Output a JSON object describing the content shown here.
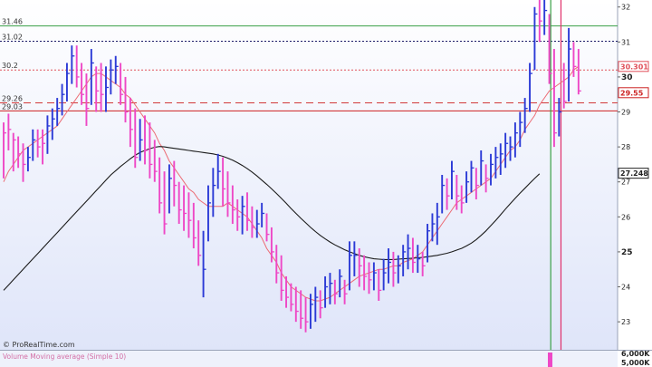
{
  "chart_data": {
    "type": "ohlc",
    "ylim": [
      22.2,
      32.2
    ],
    "y_ticks": [
      23,
      24,
      25,
      26,
      27,
      28,
      29,
      30,
      31,
      32
    ],
    "y_ticks_major": [
      25,
      30
    ],
    "candles": [
      {
        "h": 28.7,
        "l": 27.1,
        "c": 28.4,
        "d": "down"
      },
      {
        "h": 28.95,
        "l": 27.9,
        "c": 28.5,
        "d": "down"
      },
      {
        "h": 28.4,
        "l": 27.3,
        "c": 28.2,
        "d": "down"
      },
      {
        "h": 28.3,
        "l": 27.4,
        "c": 27.8,
        "d": "down"
      },
      {
        "h": 28.1,
        "l": 27.0,
        "c": 27.5,
        "d": "down"
      },
      {
        "h": 28.0,
        "l": 27.3,
        "c": 27.7,
        "d": "up"
      },
      {
        "h": 28.5,
        "l": 27.6,
        "c": 28.2,
        "d": "up"
      },
      {
        "h": 28.5,
        "l": 27.7,
        "c": 28.0,
        "d": "down"
      },
      {
        "h": 28.5,
        "l": 27.5,
        "c": 28.1,
        "d": "down"
      },
      {
        "h": 28.9,
        "l": 27.8,
        "c": 28.6,
        "d": "up"
      },
      {
        "h": 29.1,
        "l": 28.2,
        "c": 28.8,
        "d": "up"
      },
      {
        "h": 29.4,
        "l": 28.6,
        "c": 29.1,
        "d": "up"
      },
      {
        "h": 29.8,
        "l": 28.9,
        "c": 29.5,
        "d": "up"
      },
      {
        "h": 30.4,
        "l": 29.3,
        "c": 30.1,
        "d": "up"
      },
      {
        "h": 30.9,
        "l": 29.8,
        "c": 30.6,
        "d": "up"
      },
      {
        "h": 30.9,
        "l": 29.7,
        "c": 30.0,
        "d": "down"
      },
      {
        "h": 30.4,
        "l": 29.2,
        "c": 29.5,
        "d": "down"
      },
      {
        "h": 30.1,
        "l": 28.6,
        "c": 29.1,
        "d": "down"
      },
      {
        "h": 30.8,
        "l": 29.2,
        "c": 30.4,
        "d": "up"
      },
      {
        "h": 30.3,
        "l": 29.0,
        "c": 29.6,
        "d": "down"
      },
      {
        "h": 30.4,
        "l": 29.0,
        "c": 29.5,
        "d": "down"
      },
      {
        "h": 30.3,
        "l": 29.0,
        "c": 29.7,
        "d": "up"
      },
      {
        "h": 30.5,
        "l": 29.5,
        "c": 30.2,
        "d": "up"
      },
      {
        "h": 30.6,
        "l": 29.8,
        "c": 30.3,
        "d": "up"
      },
      {
        "h": 30.4,
        "l": 29.2,
        "c": 29.5,
        "d": "down"
      },
      {
        "h": 30.0,
        "l": 28.7,
        "c": 29.0,
        "d": "down"
      },
      {
        "h": 29.4,
        "l": 28.0,
        "c": 28.5,
        "d": "down"
      },
      {
        "h": 29.1,
        "l": 27.4,
        "c": 27.7,
        "d": "down"
      },
      {
        "h": 28.8,
        "l": 27.6,
        "c": 28.2,
        "d": "up"
      },
      {
        "h": 28.9,
        "l": 27.5,
        "c": 27.9,
        "d": "down"
      },
      {
        "h": 28.7,
        "l": 27.1,
        "c": 27.5,
        "d": "down"
      },
      {
        "h": 28.2,
        "l": 27.0,
        "c": 27.3,
        "d": "down"
      },
      {
        "h": 27.7,
        "l": 26.1,
        "c": 26.4,
        "d": "down"
      },
      {
        "h": 27.3,
        "l": 25.5,
        "c": 25.8,
        "d": "down"
      },
      {
        "h": 27.5,
        "l": 26.1,
        "c": 27.1,
        "d": "up"
      },
      {
        "h": 27.6,
        "l": 26.3,
        "c": 26.9,
        "d": "down"
      },
      {
        "h": 27.0,
        "l": 25.8,
        "c": 26.2,
        "d": "down"
      },
      {
        "h": 26.9,
        "l": 25.6,
        "c": 26.1,
        "d": "down"
      },
      {
        "h": 26.7,
        "l": 25.4,
        "c": 25.9,
        "d": "down"
      },
      {
        "h": 26.4,
        "l": 25.1,
        "c": 25.4,
        "d": "down"
      },
      {
        "h": 25.9,
        "l": 24.6,
        "c": 24.9,
        "d": "down"
      },
      {
        "h": 25.6,
        "l": 23.7,
        "c": 24.5,
        "d": "up"
      },
      {
        "h": 26.9,
        "l": 25.3,
        "c": 26.4,
        "d": "up"
      },
      {
        "h": 27.4,
        "l": 26.0,
        "c": 26.9,
        "d": "up"
      },
      {
        "h": 27.8,
        "l": 26.8,
        "c": 27.3,
        "d": "up"
      },
      {
        "h": 27.7,
        "l": 26.3,
        "c": 26.8,
        "d": "down"
      },
      {
        "h": 27.3,
        "l": 26.0,
        "c": 26.4,
        "d": "down"
      },
      {
        "h": 26.9,
        "l": 25.8,
        "c": 26.2,
        "d": "down"
      },
      {
        "h": 26.5,
        "l": 25.6,
        "c": 26.0,
        "d": "down"
      },
      {
        "h": 26.6,
        "l": 25.5,
        "c": 26.3,
        "d": "up"
      },
      {
        "h": 26.7,
        "l": 25.6,
        "c": 25.9,
        "d": "down"
      },
      {
        "h": 26.3,
        "l": 25.4,
        "c": 25.7,
        "d": "down"
      },
      {
        "h": 26.2,
        "l": 25.4,
        "c": 25.8,
        "d": "up"
      },
      {
        "h": 26.4,
        "l": 25.7,
        "c": 26.1,
        "d": "up"
      },
      {
        "h": 26.1,
        "l": 25.3,
        "c": 25.5,
        "d": "down"
      },
      {
        "h": 25.7,
        "l": 24.7,
        "c": 25.0,
        "d": "down"
      },
      {
        "h": 25.2,
        "l": 24.1,
        "c": 24.4,
        "d": "down"
      },
      {
        "h": 24.9,
        "l": 23.6,
        "c": 23.9,
        "d": "down"
      },
      {
        "h": 24.3,
        "l": 23.4,
        "c": 23.7,
        "d": "down"
      },
      {
        "h": 24.1,
        "l": 23.3,
        "c": 23.5,
        "d": "down"
      },
      {
        "h": 24.0,
        "l": 23.0,
        "c": 23.3,
        "d": "down"
      },
      {
        "h": 23.9,
        "l": 22.8,
        "c": 23.1,
        "d": "down"
      },
      {
        "h": 23.7,
        "l": 22.7,
        "c": 23.0,
        "d": "down"
      },
      {
        "h": 23.8,
        "l": 22.8,
        "c": 23.5,
        "d": "up"
      },
      {
        "h": 24.0,
        "l": 23.0,
        "c": 23.7,
        "d": "up"
      },
      {
        "h": 23.9,
        "l": 23.1,
        "c": 23.4,
        "d": "down"
      },
      {
        "h": 24.3,
        "l": 23.4,
        "c": 24.0,
        "d": "up"
      },
      {
        "h": 24.4,
        "l": 23.5,
        "c": 24.1,
        "d": "up"
      },
      {
        "h": 24.2,
        "l": 23.5,
        "c": 23.8,
        "d": "down"
      },
      {
        "h": 24.5,
        "l": 23.7,
        "c": 24.3,
        "d": "up"
      },
      {
        "h": 24.2,
        "l": 23.5,
        "c": 23.8,
        "d": "down"
      },
      {
        "h": 25.3,
        "l": 23.9,
        "c": 24.9,
        "d": "up"
      },
      {
        "h": 25.3,
        "l": 24.3,
        "c": 24.9,
        "d": "up"
      },
      {
        "h": 25.1,
        "l": 24.0,
        "c": 24.6,
        "d": "down"
      },
      {
        "h": 24.9,
        "l": 23.9,
        "c": 24.3,
        "d": "down"
      },
      {
        "h": 24.7,
        "l": 23.8,
        "c": 24.2,
        "d": "down"
      },
      {
        "h": 24.7,
        "l": 23.9,
        "c": 24.4,
        "d": "up"
      },
      {
        "h": 24.5,
        "l": 23.6,
        "c": 23.9,
        "d": "down"
      },
      {
        "h": 24.8,
        "l": 23.9,
        "c": 24.4,
        "d": "up"
      },
      {
        "h": 25.1,
        "l": 24.1,
        "c": 24.7,
        "d": "up"
      },
      {
        "h": 25.0,
        "l": 24.0,
        "c": 24.4,
        "d": "down"
      },
      {
        "h": 24.9,
        "l": 24.1,
        "c": 24.6,
        "d": "up"
      },
      {
        "h": 25.2,
        "l": 24.3,
        "c": 25.0,
        "d": "up"
      },
      {
        "h": 25.5,
        "l": 24.5,
        "c": 25.1,
        "d": "up"
      },
      {
        "h": 25.4,
        "l": 24.4,
        "c": 24.7,
        "d": "down"
      },
      {
        "h": 25.2,
        "l": 24.4,
        "c": 24.8,
        "d": "up"
      },
      {
        "h": 25.0,
        "l": 24.3,
        "c": 24.6,
        "d": "down"
      },
      {
        "h": 25.8,
        "l": 24.7,
        "c": 25.6,
        "d": "up"
      },
      {
        "h": 26.1,
        "l": 25.3,
        "c": 25.8,
        "d": "up"
      },
      {
        "h": 26.4,
        "l": 25.2,
        "c": 26.0,
        "d": "up"
      },
      {
        "h": 27.2,
        "l": 26.1,
        "c": 26.9,
        "d": "up"
      },
      {
        "h": 27.1,
        "l": 26.2,
        "c": 26.6,
        "d": "down"
      },
      {
        "h": 27.6,
        "l": 26.5,
        "c": 27.3,
        "d": "up"
      },
      {
        "h": 27.2,
        "l": 26.2,
        "c": 26.6,
        "d": "down"
      },
      {
        "h": 26.9,
        "l": 26.1,
        "c": 26.4,
        "d": "down"
      },
      {
        "h": 27.3,
        "l": 26.4,
        "c": 27.0,
        "d": "up"
      },
      {
        "h": 27.6,
        "l": 26.7,
        "c": 27.4,
        "d": "up"
      },
      {
        "h": 27.4,
        "l": 26.5,
        "c": 26.9,
        "d": "down"
      },
      {
        "h": 27.9,
        "l": 26.9,
        "c": 27.6,
        "d": "up"
      },
      {
        "h": 27.5,
        "l": 26.7,
        "c": 27.1,
        "d": "down"
      },
      {
        "h": 27.8,
        "l": 26.9,
        "c": 27.5,
        "d": "up"
      },
      {
        "h": 28.0,
        "l": 27.1,
        "c": 27.7,
        "d": "up"
      },
      {
        "h": 28.1,
        "l": 27.2,
        "c": 27.8,
        "d": "up"
      },
      {
        "h": 28.4,
        "l": 27.4,
        "c": 28.1,
        "d": "up"
      },
      {
        "h": 28.3,
        "l": 27.6,
        "c": 28.0,
        "d": "up"
      },
      {
        "h": 28.7,
        "l": 27.7,
        "c": 28.4,
        "d": "up"
      },
      {
        "h": 29.0,
        "l": 28.0,
        "c": 28.7,
        "d": "up"
      },
      {
        "h": 29.4,
        "l": 28.4,
        "c": 29.1,
        "d": "up"
      },
      {
        "h": 30.4,
        "l": 29.0,
        "c": 30.1,
        "d": "up"
      },
      {
        "h": 32.0,
        "l": 30.2,
        "c": 31.8,
        "d": "up"
      },
      {
        "h": 32.2,
        "l": 31.0,
        "c": 31.6,
        "d": "down"
      },
      {
        "h": 32.2,
        "l": 31.2,
        "c": 31.9,
        "d": "up"
      },
      {
        "h": 31.8,
        "l": 29.8,
        "c": 30.1,
        "d": "down"
      },
      {
        "h": 30.8,
        "l": 28.0,
        "c": 28.4,
        "d": "down"
      },
      {
        "h": 29.4,
        "l": 28.3,
        "c": 29.0,
        "d": "up"
      },
      {
        "h": 30.4,
        "l": 29.1,
        "c": 29.3,
        "d": "down"
      },
      {
        "h": 31.4,
        "l": 29.3,
        "c": 30.8,
        "d": "up"
      },
      {
        "h": 31.0,
        "l": 30.0,
        "c": 30.3,
        "d": "down"
      },
      {
        "h": 30.8,
        "l": 29.5,
        "c": 29.6,
        "d": "down"
      }
    ],
    "series": [
      {
        "name": "Moving average (Simple 10)",
        "values": [
          27.0,
          27.3,
          27.5,
          27.7,
          27.9,
          28.0,
          28.1,
          28.2,
          28.3,
          28.4,
          28.5,
          28.6,
          28.8,
          29.0,
          29.2,
          29.4,
          29.6,
          29.8,
          30.0,
          30.1,
          30.1,
          30.0,
          29.9,
          29.8,
          29.7,
          29.5,
          29.4,
          29.2,
          29.0,
          28.8,
          28.6,
          28.4,
          28.1,
          27.9,
          27.6,
          27.4,
          27.2,
          27.0,
          26.8,
          26.7,
          26.5,
          26.4,
          26.3,
          26.3,
          26.3,
          26.3,
          26.4,
          26.3,
          26.2,
          26.1,
          26.0,
          25.8,
          25.6,
          25.4,
          25.1,
          24.9,
          24.7,
          24.4,
          24.2,
          24.0,
          23.9,
          23.8,
          23.7,
          23.65,
          23.6,
          23.6,
          23.65,
          23.7,
          23.8,
          23.9,
          24.0,
          24.1,
          24.2,
          24.3,
          24.35,
          24.4,
          24.45,
          24.5,
          24.5,
          24.55,
          24.6,
          24.6,
          24.7,
          24.75,
          24.8,
          24.9,
          25.0,
          25.2,
          25.4,
          25.6,
          25.8,
          26.0,
          26.2,
          26.4,
          26.5,
          26.6,
          26.7,
          26.8,
          26.9,
          27.0,
          27.1,
          27.3,
          27.5,
          27.7,
          27.9,
          28.0,
          28.2,
          28.5,
          28.7,
          28.9,
          29.2,
          29.4,
          29.6,
          29.7,
          29.8,
          29.9,
          30.0,
          30.2,
          30.3
        ]
      },
      {
        "name": "Moving average (Simple 50)",
        "values": [
          23.9,
          24.05,
          24.2,
          24.35,
          24.5,
          24.65,
          24.8,
          24.95,
          25.1,
          25.25,
          25.4,
          25.55,
          25.7,
          25.85,
          26.0,
          26.15,
          26.3,
          26.45,
          26.6,
          26.75,
          26.9,
          27.05,
          27.2,
          27.32,
          27.44,
          27.55,
          27.66,
          27.76,
          27.84,
          27.9,
          27.95,
          27.99,
          28.01,
          28.0,
          27.98,
          27.96,
          27.94,
          27.92,
          27.9,
          27.88,
          27.86,
          27.84,
          27.82,
          27.8,
          27.77,
          27.73,
          27.68,
          27.62,
          27.55,
          27.47,
          27.38,
          27.28,
          27.17,
          27.05,
          26.93,
          26.8,
          26.67,
          26.53,
          26.39,
          26.24,
          26.1,
          25.96,
          25.83,
          25.7,
          25.58,
          25.47,
          25.37,
          25.28,
          25.2,
          25.13,
          25.06,
          25.0,
          24.95,
          24.9,
          24.86,
          24.83,
          24.8,
          24.79,
          24.78,
          24.78,
          24.78,
          24.79,
          24.8,
          24.81,
          24.82,
          24.83,
          24.84,
          24.86,
          24.88,
          24.9,
          24.93,
          24.96,
          25.0,
          25.05,
          25.1,
          25.17,
          25.25,
          25.35,
          25.47,
          25.6,
          25.75,
          25.9,
          26.06,
          26.22,
          26.38,
          26.53,
          26.68,
          26.82,
          26.96,
          27.1,
          27.23
        ]
      }
    ],
    "levels": [
      {
        "value": 31.46,
        "label": "31.46",
        "color": "#3aa047",
        "style": "solid"
      },
      {
        "value": 31.02,
        "label": "31.02",
        "color": "#1a1a66",
        "style": "dotted"
      },
      {
        "value": 30.2,
        "label": "30.2",
        "color": "#e0505a",
        "style": "dotted"
      },
      {
        "value": 29.26,
        "label": "29.26",
        "color": "#d23a3a",
        "style": "dashed"
      },
      {
        "value": 29.03,
        "label": "29.03",
        "color": "#cc2222",
        "style": "solid"
      }
    ],
    "axis_tags": [
      {
        "value": 30.301,
        "label": "30.301",
        "color": "#e0505a"
      },
      {
        "value": 29.55,
        "label": "29.55",
        "color": "#cc2222"
      },
      {
        "value": 27.248,
        "label": "27.248",
        "color": "#222222"
      }
    ],
    "colors": {
      "up": "#2b3ad6",
      "down": "#ee48c6",
      "ma_fast": "#ec6b74",
      "ma_slow": "#1b1b1b",
      "green_line": "#3aa047",
      "red_vline": "#e0306a"
    },
    "vertical_lines": [
      {
        "index": 112.3,
        "color": "#3aa047"
      },
      {
        "index": 114.4,
        "color": "#e0306a"
      }
    ],
    "credit": "© ProRealTime.com",
    "volume": {
      "label": "Volume Moving average (Simple 10)",
      "ticks": [
        "6,000K",
        "5,000K"
      ]
    }
  }
}
